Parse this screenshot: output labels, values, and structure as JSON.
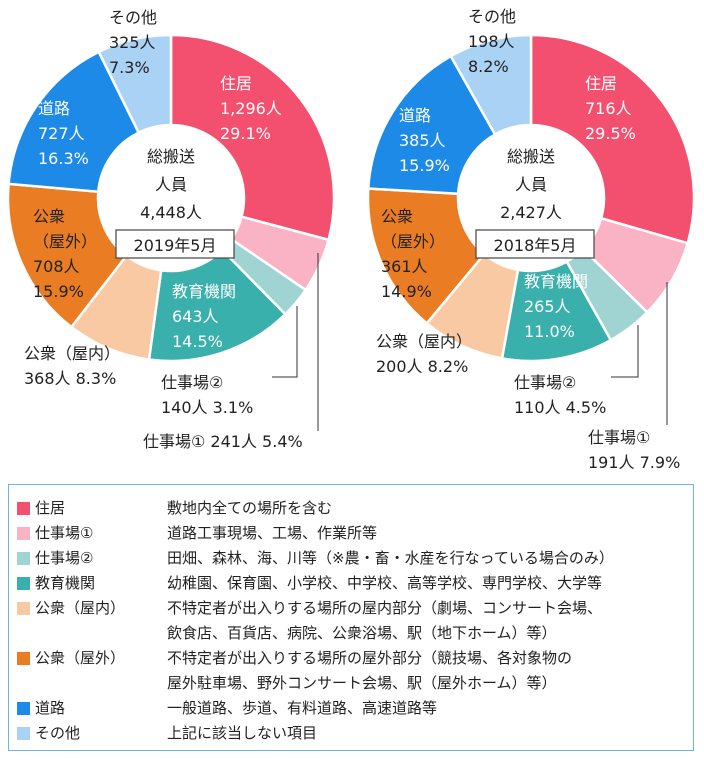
{
  "chart_data": [
    {
      "type": "pie",
      "center_text": [
        "総搬送",
        "人員",
        "4,448人"
      ],
      "date_label": "2019年5月",
      "slices": [
        {
          "category": "住居",
          "count": "1,296人",
          "percent": "29.1%",
          "value": 29.1,
          "color": "#f2506e"
        },
        {
          "category": "仕事場①",
          "count": "241人",
          "percent": "5.4%",
          "value": 5.4,
          "color": "#f9b3c4"
        },
        {
          "category": "仕事場②",
          "count": "140人",
          "percent": "3.1%",
          "value": 3.1,
          "color": "#9fd4d2"
        },
        {
          "category": "教育機関",
          "count": "643人",
          "percent": "14.5%",
          "value": 14.5,
          "color": "#3ab0ac"
        },
        {
          "category": "公衆（屋内）",
          "count": "368人",
          "percent": "8.3%",
          "value": 8.3,
          "color": "#f8c9a2"
        },
        {
          "category": "公衆（屋外）",
          "count": "708人",
          "percent": "15.9%",
          "value": 15.9,
          "color": "#ea7d24"
        },
        {
          "category": "道路",
          "count": "727人",
          "percent": "16.3%",
          "value": 16.3,
          "color": "#1c8ae6"
        },
        {
          "category": "その他",
          "count": "325人",
          "percent": "7.3%",
          "value": 7.3,
          "color": "#a9d2f5"
        }
      ]
    },
    {
      "type": "pie",
      "center_text": [
        "総搬送",
        "人員",
        "2,427人"
      ],
      "date_label": "2018年5月",
      "slices": [
        {
          "category": "住居",
          "count": "716人",
          "percent": "29.5%",
          "value": 29.5,
          "color": "#f2506e"
        },
        {
          "category": "仕事場①",
          "count": "191人",
          "percent": "7.9%",
          "value": 7.9,
          "color": "#f9b3c4"
        },
        {
          "category": "仕事場②",
          "count": "110人",
          "percent": "4.5%",
          "value": 4.5,
          "color": "#9fd4d2"
        },
        {
          "category": "教育機関",
          "count": "265人",
          "percent": "11.0%",
          "value": 11.0,
          "color": "#3ab0ac"
        },
        {
          "category": "公衆（屋内）",
          "count": "200人",
          "percent": "8.2%",
          "value": 8.2,
          "color": "#f8c9a2"
        },
        {
          "category": "公衆（屋外）",
          "count": "361人",
          "percent": "14.9%",
          "value": 14.9,
          "color": "#ea7d24"
        },
        {
          "category": "道路",
          "count": "385人",
          "percent": "15.9%",
          "value": 15.9,
          "color": "#1c8ae6"
        },
        {
          "category": "その他",
          "count": "198人",
          "percent": "8.2%",
          "value": 8.2,
          "color": "#a9d2f5"
        }
      ]
    }
  ],
  "legend": [
    {
      "label": "住居",
      "color": "#f2506e",
      "lines": [
        "敷地内全ての場所を含む"
      ]
    },
    {
      "label": "仕事場①",
      "color": "#f9b3c4",
      "lines": [
        "道路工事現場、工場、作業所等"
      ]
    },
    {
      "label": "仕事場②",
      "color": "#9fd4d2",
      "lines": [
        "田畑、森林、海、川等（※農・畜・水産を行なっている場合のみ）"
      ]
    },
    {
      "label": "教育機関",
      "color": "#3ab0ac",
      "lines": [
        "幼稚園、保育園、小学校、中学校、高等学校、専門学校、大学等"
      ]
    },
    {
      "label": "公衆（屋内）",
      "color": "#f8c9a2",
      "lines": [
        "不特定者が出入りする場所の屋内部分（劇場、コンサート会場、",
        "飲食店、百貨店、病院、公衆浴場、駅（地下ホーム）等）"
      ]
    },
    {
      "label": "公衆（屋外）",
      "color": "#ea7d24",
      "lines": [
        "不特定者が出入りする場所の屋外部分（競技場、各対象物の",
        "屋外駐車場、野外コンサート会場、駅（屋外ホーム）等）"
      ]
    },
    {
      "label": "道路",
      "color": "#1c8ae6",
      "lines": [
        "一般道路、歩道、有料道路、高速道路等"
      ]
    },
    {
      "label": "その他",
      "color": "#a9d2f5",
      "lines": [
        "上記に該当しない項目"
      ]
    }
  ]
}
